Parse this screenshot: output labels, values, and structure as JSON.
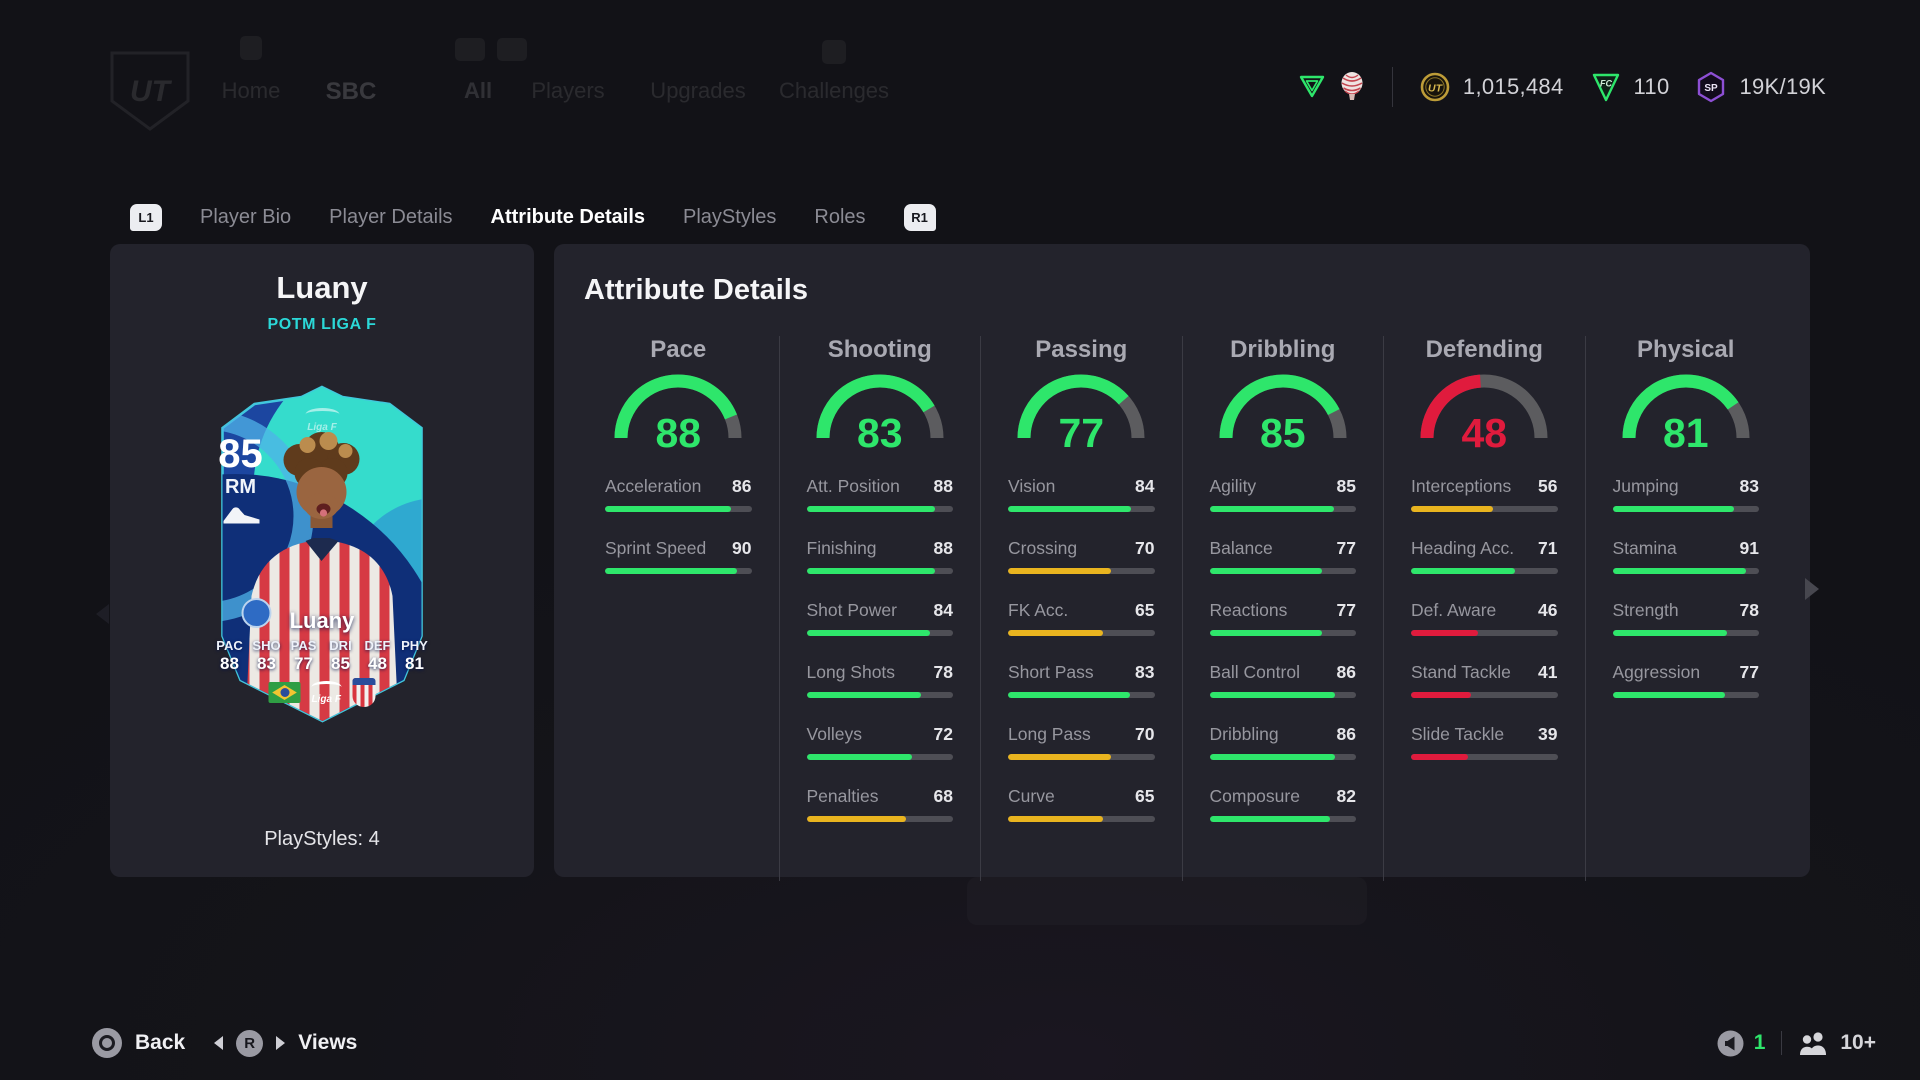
{
  "nav": {
    "logo": "UT",
    "items": [
      "Home",
      "SBC",
      "All",
      "Players",
      "Upgrades",
      "Challenges"
    ]
  },
  "currency": {
    "coins": "1,015,484",
    "points": "110",
    "season_progress": "19K/19K"
  },
  "tabs": {
    "left_bumper": "L1",
    "right_bumper": "R1",
    "items": [
      {
        "label": "Player Bio",
        "active": false
      },
      {
        "label": "Player Details",
        "active": false
      },
      {
        "label": "Attribute Details",
        "active": true
      },
      {
        "label": "PlayStyles",
        "active": false
      },
      {
        "label": "Roles",
        "active": false
      }
    ]
  },
  "player": {
    "name": "Luany",
    "version": "POTM LIGA F",
    "rating": "85",
    "position": "RM",
    "card_name": "Luany",
    "card_league_logo": "Liga F",
    "card_stats": [
      {
        "label": "PAC",
        "value": "88"
      },
      {
        "label": "SHO",
        "value": "83"
      },
      {
        "label": "PAS",
        "value": "77"
      },
      {
        "label": "DRI",
        "value": "85"
      },
      {
        "label": "DEF",
        "value": "48"
      },
      {
        "label": "PHY",
        "value": "81"
      }
    ],
    "playstyles_label": "PlayStyles: 4"
  },
  "panel": {
    "title": "Attribute Details"
  },
  "attributes": {
    "groups": [
      {
        "name": "Pace",
        "overall": 88,
        "color": "green",
        "stats": [
          {
            "label": "Acceleration",
            "value": 86,
            "color": "green"
          },
          {
            "label": "Sprint Speed",
            "value": 90,
            "color": "green"
          }
        ]
      },
      {
        "name": "Shooting",
        "overall": 83,
        "color": "green",
        "stats": [
          {
            "label": "Att. Position",
            "value": 88,
            "color": "green"
          },
          {
            "label": "Finishing",
            "value": 88,
            "color": "green"
          },
          {
            "label": "Shot Power",
            "value": 84,
            "color": "green"
          },
          {
            "label": "Long Shots",
            "value": 78,
            "color": "green"
          },
          {
            "label": "Volleys",
            "value": 72,
            "color": "green"
          },
          {
            "label": "Penalties",
            "value": 68,
            "color": "yellow"
          }
        ]
      },
      {
        "name": "Passing",
        "overall": 77,
        "color": "green",
        "stats": [
          {
            "label": "Vision",
            "value": 84,
            "color": "green"
          },
          {
            "label": "Crossing",
            "value": 70,
            "color": "yellow"
          },
          {
            "label": "FK Acc.",
            "value": 65,
            "color": "yellow"
          },
          {
            "label": "Short Pass",
            "value": 83,
            "color": "green"
          },
          {
            "label": "Long Pass",
            "value": 70,
            "color": "yellow"
          },
          {
            "label": "Curve",
            "value": 65,
            "color": "yellow"
          }
        ]
      },
      {
        "name": "Dribbling",
        "overall": 85,
        "color": "green",
        "stats": [
          {
            "label": "Agility",
            "value": 85,
            "color": "green"
          },
          {
            "label": "Balance",
            "value": 77,
            "color": "green"
          },
          {
            "label": "Reactions",
            "value": 77,
            "color": "green"
          },
          {
            "label": "Ball Control",
            "value": 86,
            "color": "green"
          },
          {
            "label": "Dribbling",
            "value": 86,
            "color": "green"
          },
          {
            "label": "Composure",
            "value": 82,
            "color": "green"
          }
        ]
      },
      {
        "name": "Defending",
        "overall": 48,
        "color": "red",
        "stats": [
          {
            "label": "Interceptions",
            "value": 56,
            "color": "yellow"
          },
          {
            "label": "Heading Acc.",
            "value": 71,
            "color": "green"
          },
          {
            "label": "Def. Aware",
            "value": 46,
            "color": "red"
          },
          {
            "label": "Stand Tackle",
            "value": 41,
            "color": "red"
          },
          {
            "label": "Slide Tackle",
            "value": 39,
            "color": "red"
          }
        ]
      },
      {
        "name": "Physical",
        "overall": 81,
        "color": "green",
        "stats": [
          {
            "label": "Jumping",
            "value": 83,
            "color": "green"
          },
          {
            "label": "Stamina",
            "value": 91,
            "color": "green"
          },
          {
            "label": "Strength",
            "value": 78,
            "color": "green"
          },
          {
            "label": "Aggression",
            "value": 77,
            "color": "green"
          }
        ]
      }
    ]
  },
  "footer": {
    "back_label": "Back",
    "views_label": "Views",
    "r_button": "R",
    "voice_count": "1",
    "players_online": "10+"
  },
  "colors": {
    "green": "#2ee66b",
    "yellow": "#e9b41f",
    "red": "#e01b3d",
    "cyan": "#2bd8d8"
  }
}
